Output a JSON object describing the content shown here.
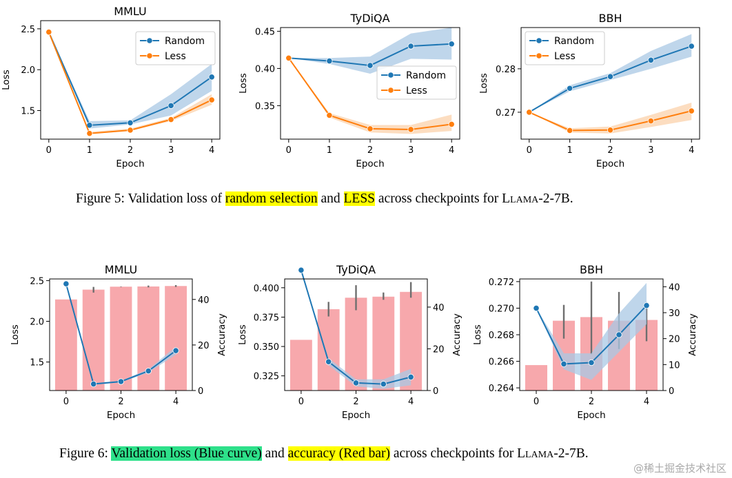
{
  "colors": {
    "random": "#1f77b4",
    "less": "#ff7f0e",
    "random_band": "#a9c8e4",
    "less_band": "#fbd1ab",
    "bar": "#f7a8ac",
    "err": "#6e6e6e"
  },
  "figure5": {
    "caption": {
      "prefix": "Figure 5: Validation loss of ",
      "hl1": "random selection",
      "mid": " and ",
      "hl2": "LESS",
      "suffix1": " across checkpoints for ",
      "model": "Llama",
      "suffix2": "-2-7B."
    }
  },
  "figure6": {
    "caption": {
      "prefix": "Figure 6: ",
      "hl1": "Validation loss (Blue curve)",
      "mid": " and ",
      "hl2": "accuracy (Red bar)",
      "suffix1": " across checkpoints for ",
      "model": "Llama",
      "suffix2": "-2-7B."
    }
  },
  "watermark": "@稀土掘金技术社区",
  "chart_data": [
    {
      "type": "line",
      "figure": "Figure 5",
      "title": "MMLU",
      "xlabel": "Epoch",
      "ylabel": "Loss",
      "x": [
        0,
        1,
        2,
        3,
        4
      ],
      "xlim": [
        -0.2,
        4.2
      ],
      "ylim": [
        1.15,
        2.6
      ],
      "yticks": [
        1.5,
        2.0,
        2.5
      ],
      "ytick_labels": [
        "1.5",
        "2.0",
        "2.5"
      ],
      "legend": "top-right",
      "series": [
        {
          "name": "Random",
          "values": [
            2.46,
            1.32,
            1.35,
            1.56,
            1.91
          ],
          "band_low": [
            2.46,
            1.28,
            1.33,
            1.44,
            1.74
          ],
          "band_high": [
            2.46,
            1.37,
            1.38,
            1.7,
            2.07
          ]
        },
        {
          "name": "Less",
          "values": [
            2.46,
            1.22,
            1.26,
            1.39,
            1.63
          ],
          "band_low": [
            2.46,
            1.21,
            1.25,
            1.37,
            1.57
          ],
          "band_high": [
            2.46,
            1.24,
            1.28,
            1.41,
            1.7
          ]
        }
      ]
    },
    {
      "type": "line",
      "figure": "Figure 5",
      "title": "TyDiQA",
      "xlabel": "Epoch",
      "ylabel": "Loss",
      "x": [
        0,
        1,
        2,
        3,
        4
      ],
      "xlim": [
        -0.2,
        4.2
      ],
      "ylim": [
        0.305,
        0.455
      ],
      "yticks": [
        0.35,
        0.4,
        0.45
      ],
      "ytick_labels": [
        "0.35",
        "0.40",
        "0.45"
      ],
      "legend": "center-right",
      "series": [
        {
          "name": "Random",
          "values": [
            0.414,
            0.41,
            0.404,
            0.43,
            0.433
          ],
          "band_low": [
            0.414,
            0.406,
            0.393,
            0.413,
            0.412
          ],
          "band_high": [
            0.414,
            0.414,
            0.416,
            0.447,
            0.455
          ]
        },
        {
          "name": "Less",
          "values": [
            0.414,
            0.337,
            0.319,
            0.318,
            0.325
          ],
          "band_low": [
            0.414,
            0.334,
            0.314,
            0.312,
            0.316
          ],
          "band_high": [
            0.414,
            0.34,
            0.324,
            0.324,
            0.338
          ]
        }
      ]
    },
    {
      "type": "line",
      "figure": "Figure 5",
      "title": "BBH",
      "xlabel": "Epoch",
      "ylabel": "Loss",
      "x": [
        0,
        1,
        2,
        3,
        4
      ],
      "xlim": [
        -0.2,
        4.2
      ],
      "ylim": [
        0.2638,
        0.2895
      ],
      "yticks": [
        0.27,
        0.28
      ],
      "ytick_labels": [
        "0.27",
        "0.28"
      ],
      "legend": "top-left",
      "series": [
        {
          "name": "Random",
          "values": [
            0.27,
            0.2755,
            0.2782,
            0.282,
            0.2852
          ],
          "band_low": [
            0.27,
            0.2748,
            0.2774,
            0.28,
            0.2828
          ],
          "band_high": [
            0.27,
            0.2762,
            0.279,
            0.2841,
            0.288
          ]
        },
        {
          "name": "Less",
          "values": [
            0.27,
            0.2658,
            0.2659,
            0.268,
            0.2703
          ],
          "band_low": [
            0.27,
            0.2653,
            0.2651,
            0.2666,
            0.2682
          ],
          "band_high": [
            0.27,
            0.2663,
            0.2667,
            0.2694,
            0.2722
          ]
        }
      ]
    },
    {
      "type": "bar+line",
      "figure": "Figure 6",
      "title": "MMLU",
      "xlabel": "Epoch",
      "ylabel": "Loss",
      "y2label": "Accuracy",
      "x": [
        0,
        1,
        2,
        3,
        4
      ],
      "xlim": [
        -0.6,
        4.6
      ],
      "ylim": [
        1.15,
        2.52
      ],
      "yticks": [
        1.5,
        2.0,
        2.5
      ],
      "ytick_labels": [
        "1.5",
        "2.0",
        "2.5"
      ],
      "y2lim": [
        0,
        49
      ],
      "y2ticks": [
        0,
        20,
        40
      ],
      "y2tick_labels": [
        "0",
        "20",
        "40"
      ],
      "accuracy": [
        40.0,
        44.3,
        45.6,
        45.7,
        45.9
      ],
      "accuracy_err_low": [
        40.0,
        43.0,
        45.5,
        45.3,
        45.5
      ],
      "accuracy_err_high": [
        40.0,
        45.5,
        45.7,
        46.1,
        46.3
      ],
      "loss": [
        2.46,
        1.23,
        1.26,
        1.39,
        1.64
      ],
      "loss_band_low": [
        2.46,
        1.22,
        1.25,
        1.37,
        1.59
      ],
      "loss_band_high": [
        2.46,
        1.24,
        1.27,
        1.41,
        1.69
      ]
    },
    {
      "type": "bar+line",
      "figure": "Figure 6",
      "title": "TyDiQA",
      "xlabel": "Epoch",
      "ylabel": "Loss",
      "y2label": "Accuracy",
      "x": [
        0,
        1,
        2,
        3,
        4
      ],
      "xlim": [
        -0.6,
        4.6
      ],
      "ylim": [
        0.3125,
        0.4075
      ],
      "yticks": [
        0.325,
        0.35,
        0.375,
        0.4
      ],
      "ytick_labels": [
        "0.325",
        "0.350",
        "0.375",
        "0.400"
      ],
      "y2lim": [
        0,
        53.5
      ],
      "y2ticks": [
        0,
        20,
        40
      ],
      "y2tick_labels": [
        "0",
        "20",
        "40"
      ],
      "accuracy": [
        24.3,
        39.0,
        44.5,
        45.0,
        47.3
      ],
      "accuracy_err_low": [
        24.3,
        35.5,
        38.5,
        43.5,
        44.5
      ],
      "accuracy_err_high": [
        24.3,
        42.5,
        50.5,
        47.0,
        52.0
      ],
      "loss": [
        0.415,
        0.337,
        0.319,
        0.318,
        0.324
      ],
      "loss_band_low": [
        0.415,
        0.334,
        0.316,
        0.314,
        0.317
      ],
      "loss_band_high": [
        0.415,
        0.34,
        0.322,
        0.322,
        0.331
      ]
    },
    {
      "type": "bar+line",
      "figure": "Figure 6",
      "title": "BBH",
      "xlabel": "Epoch",
      "ylabel": "Loss",
      "y2label": "Accuracy",
      "x": [
        0,
        1,
        2,
        3,
        4
      ],
      "xlim": [
        -0.6,
        4.6
      ],
      "ylim": [
        0.2638,
        0.2722
      ],
      "yticks": [
        0.264,
        0.266,
        0.268,
        0.27,
        0.272
      ],
      "ytick_labels": [
        "0.264",
        "0.266",
        "0.268",
        "0.270",
        "0.272"
      ],
      "y2lim": [
        0,
        43
      ],
      "y2ticks": [
        0,
        10,
        20,
        30,
        40
      ],
      "y2tick_labels": [
        "0",
        "10",
        "20",
        "30",
        "40"
      ],
      "accuracy": [
        9.8,
        26.9,
        28.3,
        26.9,
        27.2
      ],
      "accuracy_err_low": [
        9.8,
        20.0,
        14.0,
        16.0,
        19.0
      ],
      "accuracy_err_high": [
        9.8,
        33.0,
        42.0,
        38.0,
        34.0
      ],
      "loss": [
        0.27,
        0.2658,
        0.2659,
        0.268,
        0.2702
      ],
      "loss_band_low": [
        0.27,
        0.2654,
        0.2646,
        0.2667,
        0.2688
      ],
      "loss_band_high": [
        0.27,
        0.2666,
        0.2666,
        0.2696,
        0.2719
      ]
    }
  ]
}
